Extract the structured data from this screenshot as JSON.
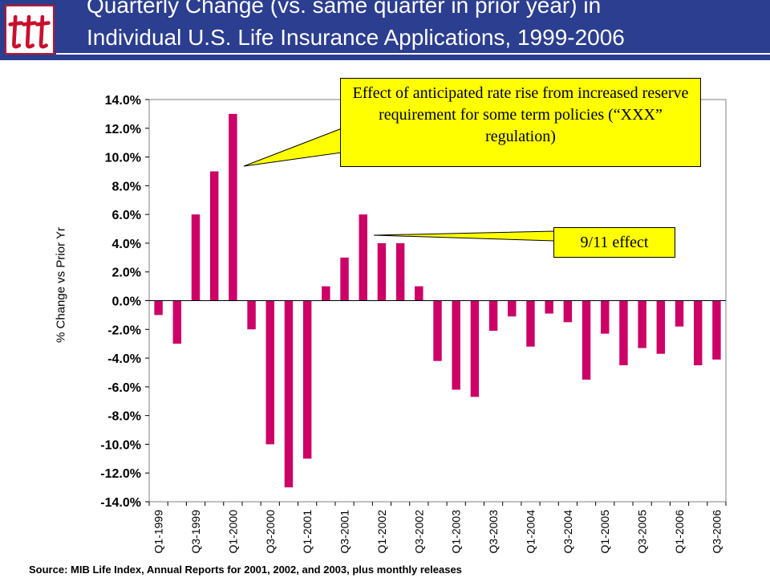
{
  "header": {
    "title_line1": "Quarterly Change (vs. same quarter in prior year) in",
    "title_line2": "Individual U.S. Life Insurance Applications, 1999-2006",
    "bg_color": "#2b3e8f",
    "logo_icon": "ttt-logo-icon"
  },
  "source": "Source: MIB Life Index, Annual Reports for 2001, 2002, and 2003, plus monthly releases",
  "annotations": {
    "xxx": "Effect of anticipated rate rise from increased reserve requirement for some term policies (“XXX” regulation)",
    "nine_eleven": "9/11 effect"
  },
  "chart_data": {
    "type": "bar",
    "ylabel": "% Change vs Prior Yr",
    "ylim": [
      -14,
      14
    ],
    "yticks": [
      14,
      12,
      10,
      8,
      6,
      4,
      2,
      0,
      -2,
      -4,
      -6,
      -8,
      -10,
      -12,
      -14
    ],
    "ytick_labels": [
      "14.0%",
      "12.0%",
      "10.0%",
      "8.0%",
      "6.0%",
      "4.0%",
      "2.0%",
      "0.0%",
      "-2.0%",
      "-4.0%",
      "-6.0%",
      "-8.0%",
      "-10.0%",
      "-12.0%",
      "-14.0%"
    ],
    "categories": [
      "Q1-1999",
      "Q2-1999",
      "Q3-1999",
      "Q4-1999",
      "Q1-2000",
      "Q2-2000",
      "Q3-2000",
      "Q4-2000",
      "Q1-2001",
      "Q2-2001",
      "Q3-2001",
      "Q4-2001",
      "Q1-2002",
      "Q2-2002",
      "Q3-2002",
      "Q4-2002",
      "Q1-2003",
      "Q2-2003",
      "Q3-2003",
      "Q4-2003",
      "Q1-2004",
      "Q2-2004",
      "Q3-2004",
      "Q4-2004",
      "Q1-2005",
      "Q2-2005",
      "Q3-2005",
      "Q4-2005",
      "Q1-2006",
      "Q2-2006",
      "Q3-2006"
    ],
    "shown_tick_labels": [
      "Q1-1999",
      "Q3-1999",
      "Q1-2000",
      "Q3-2000",
      "Q1-2001",
      "Q3-2001",
      "Q1-2002",
      "Q3-2002",
      "Q1-2003",
      "Q3-2003",
      "Q1-2004",
      "Q3-2004",
      "Q1-2005",
      "Q3-2005",
      "Q1-2006",
      "Q3-2006"
    ],
    "values": [
      -1,
      -3,
      6,
      9,
      13,
      -2,
      -10,
      -13,
      -11,
      1,
      3,
      6,
      4,
      4,
      1,
      -4.2,
      -6.2,
      -6.7,
      -2.1,
      -1.1,
      -3.2,
      -0.9,
      -1.5,
      -5.5,
      -2.3,
      -4.5,
      -3.3,
      -3.7,
      -1.8,
      -4.5,
      -4.1
    ],
    "bar_color": "#cc0066",
    "grid": false,
    "legend": "none"
  }
}
